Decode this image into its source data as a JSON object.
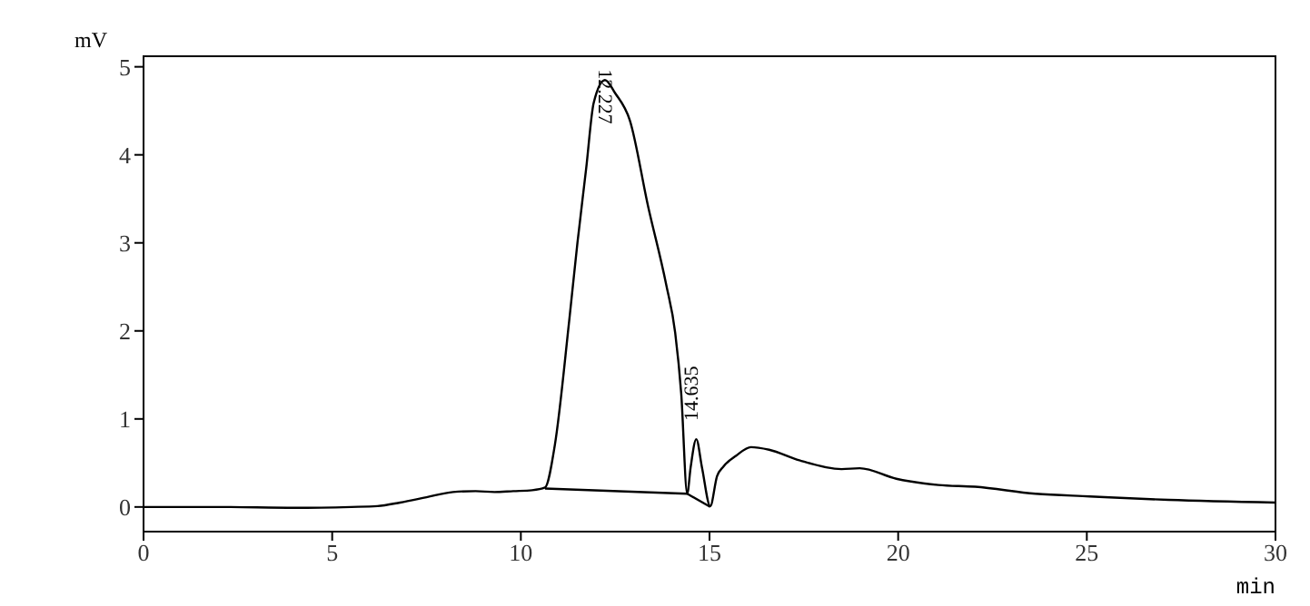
{
  "chart_data": {
    "type": "line",
    "xlabel": "min",
    "ylabel": "mV",
    "xlim": [
      0,
      30
    ],
    "ylim": [
      -0.28,
      5.12
    ],
    "xticks": [
      0,
      5,
      10,
      15,
      20,
      25,
      30
    ],
    "yticks": [
      0,
      1,
      2,
      3,
      4,
      5
    ],
    "marker": "none",
    "line_style": "solid",
    "series": [
      {
        "color": "#000000",
        "x": [
          0,
          2,
          4,
          5.5,
          6.2,
          6.8,
          7.5,
          8.2,
          8.8,
          9.3,
          9.8,
          10.3,
          10.64,
          10.9,
          11.28,
          11.5,
          11.73,
          11.93,
          12.23,
          12.5,
          12.89,
          13.37,
          13.85,
          14.09,
          14.25,
          14.41,
          14.5,
          14.65,
          14.8,
          15.02,
          15.2,
          15.37,
          15.7,
          16.1,
          16.58,
          17.38,
          18.5,
          18.98,
          19.95,
          21.07,
          22.04,
          23.64,
          25.08,
          27.17,
          30
        ],
        "values": [
          0,
          0,
          -0.01,
          0,
          0.01,
          0.05,
          0.11,
          0.17,
          0.18,
          0.17,
          0.18,
          0.19,
          0.22,
          0.7,
          2.11,
          3.0,
          3.84,
          4.59,
          4.85,
          4.7,
          4.39,
          3.42,
          2.53,
          1.98,
          1.29,
          0.15,
          0.45,
          0.77,
          0.45,
          0.01,
          0.35,
          0.46,
          0.58,
          0.68,
          0.65,
          0.53,
          0.43,
          0.44,
          0.32,
          0.25,
          0.23,
          0.15,
          0.12,
          0.08,
          0.05
        ]
      },
      {
        "color": "#000000",
        "x": [
          10.64,
          14.41,
          15.02
        ],
        "values": [
          0.21,
          0.15,
          0.0
        ],
        "line_style": "solid"
      }
    ],
    "annotations": [
      {
        "text": "12.227",
        "x": 12.227,
        "y": 4.85
      },
      {
        "text": "14.635",
        "x": 14.635,
        "y": 0.77
      }
    ]
  }
}
